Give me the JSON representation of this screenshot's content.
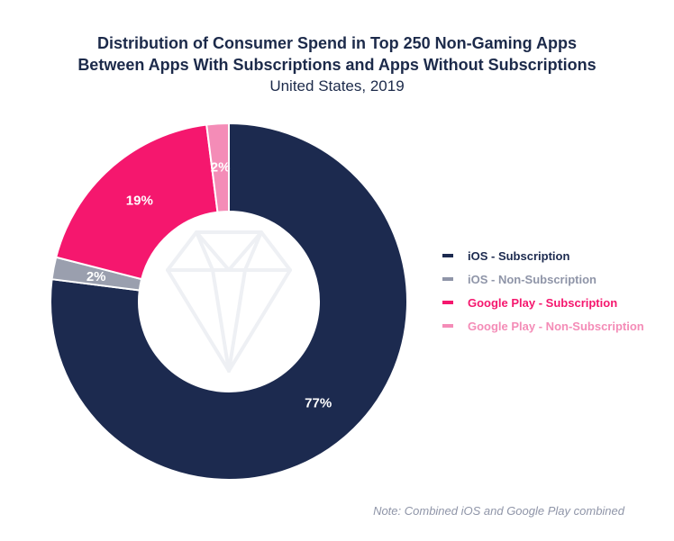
{
  "chart_data": {
    "type": "pie",
    "title_lines": [
      "Distribution of Consumer Spend in Top 250 Non-Gaming Apps",
      "Between Apps With Subscriptions and Apps Without Subscriptions"
    ],
    "subtitle": "United States, 2019",
    "slices": [
      {
        "name": "iOS - Subscription",
        "value": 77,
        "label": "77%",
        "color": "#1c2a4f",
        "legend_color": "#1c2a4f",
        "label_color": "#ffffff"
      },
      {
        "name": "iOS - Non-Subscription",
        "value": 2,
        "label": "2%",
        "color": "#9a9fae",
        "legend_color": "#8f95a8",
        "label_color": "#ffffff"
      },
      {
        "name": "Google Play - Subscription",
        "value": 19,
        "label": "19%",
        "color": "#f5176e",
        "legend_color": "#f5176e",
        "label_color": "#ffffff"
      },
      {
        "name": "Google Play - Non-Subscription",
        "value": 2,
        "label": "2%",
        "color": "#f48cb7",
        "legend_color": "#f48cb7",
        "label_color": "#ffffff"
      }
    ],
    "legend_position": "right",
    "note": "Note: Combined iOS and Google Play combined"
  }
}
